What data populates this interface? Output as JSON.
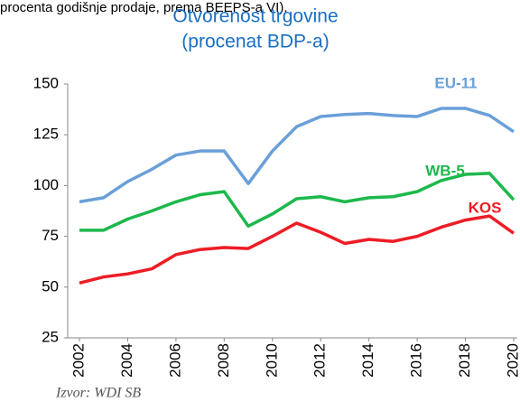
{
  "chart_data": {
    "type": "line",
    "note": "procenta godišnje prodaje, prema BEEPS-a VI).",
    "title": "Otvorenost trgovine",
    "subtitle": "(procenat BDP-a)",
    "source": "Izvor: WDI SB",
    "x": [
      2002,
      2003,
      2004,
      2005,
      2006,
      2007,
      2008,
      2009,
      2010,
      2011,
      2012,
      2013,
      2014,
      2015,
      2016,
      2017,
      2018,
      2019,
      2020
    ],
    "xlim": [
      2002,
      2020
    ],
    "xticks": [
      2002,
      2004,
      2006,
      2008,
      2010,
      2012,
      2014,
      2016,
      2018,
      2020
    ],
    "ylim": [
      25,
      150
    ],
    "yticks": [
      25,
      50,
      75,
      100,
      125,
      150
    ],
    "grid": false,
    "series": [
      {
        "name": "EU-11",
        "color": "#6a9fd8",
        "values": [
          92,
          94,
          102,
          108,
          115,
          117,
          117,
          101,
          117,
          129,
          134,
          135,
          135.5,
          134.5,
          134,
          138,
          138,
          134.5,
          126.5
        ]
      },
      {
        "name": "WB-5",
        "color": "#1db84c",
        "values": [
          78,
          78,
          83.5,
          87.5,
          92,
          95.5,
          97,
          80,
          86,
          93.5,
          94.5,
          92,
          94,
          94.5,
          97,
          102.5,
          105.5,
          106,
          93
        ]
      },
      {
        "name": "KOS",
        "color": "#ee1c25",
        "values": [
          52,
          55,
          56.5,
          59,
          66,
          68.5,
          69.5,
          69,
          75,
          81.5,
          77,
          71.5,
          73.5,
          72.5,
          75,
          79.5,
          83,
          85,
          76.5
        ]
      }
    ]
  }
}
